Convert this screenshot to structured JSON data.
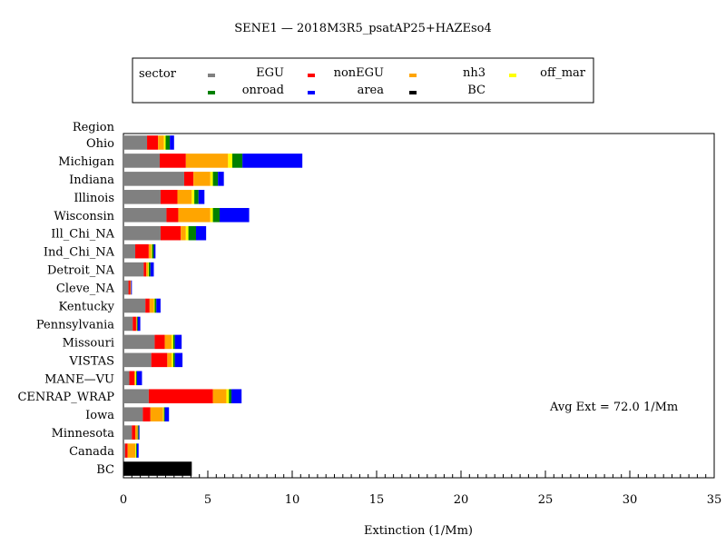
{
  "chart_data": {
    "type": "bar",
    "orientation": "horizontal",
    "stacked": true,
    "title": "SENE1  —  2018M3R5_psatAP25+HAZEso4",
    "xlabel": "Extinction  (1/Mm)",
    "ylabel": "Region",
    "xlim": [
      0,
      35
    ],
    "xticks": [
      0,
      5,
      10,
      15,
      20,
      25,
      30,
      35
    ],
    "grid": false,
    "legend_placement": "top",
    "legend_label": "sector",
    "annotation": "Avg Ext =  72.0 1/Mm",
    "categories": [
      "Ohio",
      "Michigan",
      "Indiana",
      "Illinois",
      "Wisconsin",
      "Ill_Chi_NA",
      "Ind_Chi_NA",
      "Detroit_NA",
      "Cleve_NA",
      "Kentucky",
      "Pennsylvania",
      "Missouri",
      "VISTAS",
      "MANE—VU",
      "CENRAP_WRAP",
      "Iowa",
      "Minnesota",
      "Canada",
      "BC"
    ],
    "series": [
      {
        "name": "EGU",
        "color": "#808080",
        "values": [
          1.4,
          2.15,
          3.6,
          2.2,
          2.55,
          2.2,
          0.7,
          1.2,
          0.3,
          1.3,
          0.55,
          1.85,
          1.65,
          0.35,
          1.5,
          1.15,
          0.5,
          0.1,
          0.0
        ]
      },
      {
        "name": "nonEGU",
        "color": "#ff0000",
        "values": [
          0.65,
          1.55,
          0.55,
          1.0,
          0.7,
          1.2,
          0.8,
          0.15,
          0.1,
          0.25,
          0.2,
          0.6,
          0.95,
          0.3,
          3.8,
          0.45,
          0.2,
          0.15,
          0.0
        ]
      },
      {
        "name": "nh3",
        "color": "#ffa500",
        "values": [
          0.35,
          2.5,
          1.0,
          0.85,
          1.9,
          0.3,
          0.15,
          0.1,
          0.05,
          0.25,
          0.05,
          0.4,
          0.25,
          0.05,
          0.8,
          0.75,
          0.15,
          0.45,
          0.0
        ]
      },
      {
        "name": "off_mar",
        "color": "#ffff00",
        "values": [
          0.1,
          0.25,
          0.15,
          0.15,
          0.15,
          0.15,
          0.05,
          0.05,
          0.0,
          0.05,
          0.0,
          0.1,
          0.1,
          0.05,
          0.15,
          0.05,
          0.0,
          0.05,
          0.0
        ]
      },
      {
        "name": "onroad",
        "color": "#008000",
        "values": [
          0.25,
          0.6,
          0.3,
          0.25,
          0.4,
          0.45,
          0.1,
          0.1,
          0.0,
          0.1,
          0.05,
          0.1,
          0.1,
          0.05,
          0.15,
          0.05,
          0.05,
          0.05,
          0.0
        ]
      },
      {
        "name": "area",
        "color": "#0000ff",
        "values": [
          0.25,
          3.55,
          0.35,
          0.35,
          1.75,
          0.6,
          0.1,
          0.2,
          0.05,
          0.25,
          0.15,
          0.4,
          0.45,
          0.3,
          0.6,
          0.25,
          0.05,
          0.1,
          0.0
        ]
      },
      {
        "name": "BC",
        "color": "#000000",
        "values": [
          0.0,
          0.0,
          0.0,
          0.0,
          0.0,
          0.0,
          0.0,
          0.0,
          0.0,
          0.0,
          0.0,
          0.0,
          0.0,
          0.0,
          0.0,
          0.0,
          0.0,
          0.0,
          4.05
        ]
      }
    ],
    "legend_order": [
      "EGU",
      "nonEGU",
      "nh3",
      "off_mar",
      "onroad",
      "area",
      "BC"
    ]
  }
}
